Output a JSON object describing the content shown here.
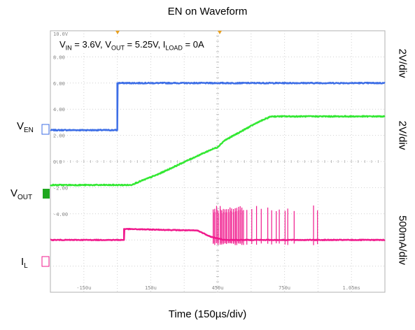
{
  "title": "EN on Waveform",
  "xlabel": "Time (150µs/div)",
  "conditions": {
    "vin_label": "V",
    "vin_sub": "IN",
    "vin_value": " = 3.6V, ",
    "vout_label": "V",
    "vout_sub": "OUT",
    "vout_value": " = 5.25V, ",
    "iload_label": "I",
    "iload_sub": "LOAD",
    "iload_value": " = 0A"
  },
  "channels": {
    "en": {
      "label": "V",
      "sub": "EN",
      "scale": "2V/div",
      "color": "#3d6ee6"
    },
    "vout": {
      "label": "V",
      "sub": "OUT",
      "scale": "2V/div",
      "color": "#33e833"
    },
    "il": {
      "label": "I",
      "sub": "L",
      "scale": "500mA/div",
      "color": "#f0198c"
    }
  },
  "scope": {
    "top_scale_label": "10.0V",
    "y_tick_labels": [
      "8.00",
      "6.00",
      "4.00",
      "2.00",
      "0.0",
      "-2.00",
      "-4.00"
    ],
    "x_tick_labels": [
      "-150u",
      "150u",
      "450u",
      "750u",
      "1.05ms"
    ]
  },
  "chart_data": {
    "type": "line",
    "title": "EN on Waveform",
    "xlabel": "Time (150µs/div)",
    "x_unit": "µs",
    "xlim": [
      -300,
      1200
    ],
    "ylim_divs": [
      -5,
      5
    ],
    "series": [
      {
        "name": "VEN",
        "units": "V",
        "scale": "2V/div",
        "x": [
          -300,
          0,
          0,
          1200
        ],
        "y": [
          0,
          0,
          3.6,
          3.6
        ]
      },
      {
        "name": "VOUT",
        "units": "V",
        "scale": "2V/div",
        "x": [
          -300,
          30,
          60,
          90,
          180,
          330,
          420,
          450,
          480,
          630,
          690,
          1200
        ],
        "y": [
          0,
          0,
          0,
          0.2,
          0.8,
          2.0,
          2.7,
          2.9,
          3.4,
          4.8,
          5.25,
          5.25
        ]
      },
      {
        "name": "IL",
        "units": "mA",
        "scale": "500mA/div",
        "x": [
          -300,
          30,
          30,
          360,
          420,
          480,
          1200
        ],
        "y": [
          0,
          0,
          210,
          180,
          60,
          0,
          0
        ],
        "spikes_from_to_us": [
          430,
          900
        ],
        "spike_peak_mA": 660
      }
    ]
  }
}
